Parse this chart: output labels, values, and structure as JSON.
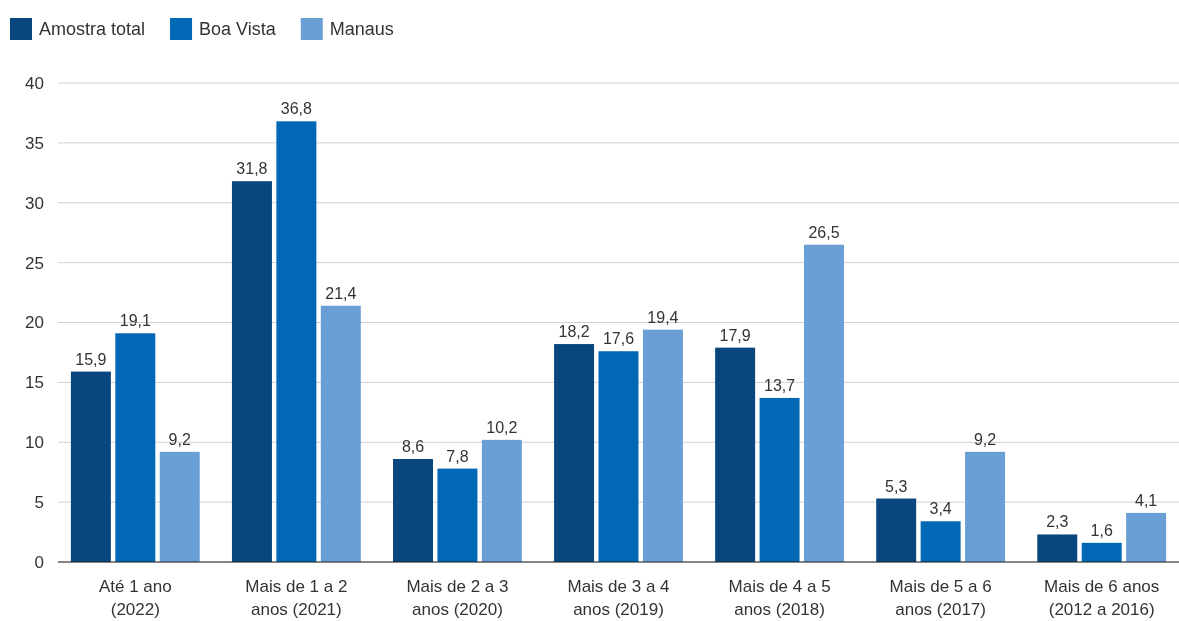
{
  "chart_data": {
    "type": "bar",
    "categories": [
      "Até 1 ano (2022)",
      "Mais de 1 a 2 anos (2021)",
      "Mais de 2 a 3 anos (2020)",
      "Mais de 3 a 4 anos (2019)",
      "Mais de 4 a 5 anos (2018)",
      "Mais de 5 a 6 anos (2017)",
      "Mais de 6 anos (2012 a 2016)"
    ],
    "series": [
      {
        "name": "Amostra total",
        "color": "#08477d",
        "values": [
          15.9,
          31.8,
          8.6,
          18.2,
          17.9,
          5.3,
          2.3
        ],
        "value_labels": [
          "15,9",
          "31,8",
          "8,6",
          "18,2",
          "17,9",
          "5,3",
          "2,3"
        ]
      },
      {
        "name": "Boa Vista",
        "color": "#0068b4",
        "values": [
          19.1,
          36.8,
          7.8,
          17.6,
          13.7,
          3.4,
          1.6
        ],
        "value_labels": [
          "19,1",
          "36,8",
          "7,8",
          "17,6",
          "13,7",
          "3,4",
          "1,6"
        ]
      },
      {
        "name": "Manaus",
        "color": "#6a9fd6",
        "values": [
          9.2,
          21.4,
          10.2,
          19.4,
          26.5,
          9.2,
          4.1
        ],
        "value_labels": [
          "9,2",
          "21,4",
          "10,2",
          "19,4",
          "26,5",
          "9,2",
          "4,1"
        ]
      }
    ],
    "ylim": [
      0,
      40
    ],
    "yticks": [
      0,
      5,
      10,
      15,
      20,
      25,
      30,
      35,
      40
    ],
    "grid": "y",
    "legend": "top left"
  }
}
